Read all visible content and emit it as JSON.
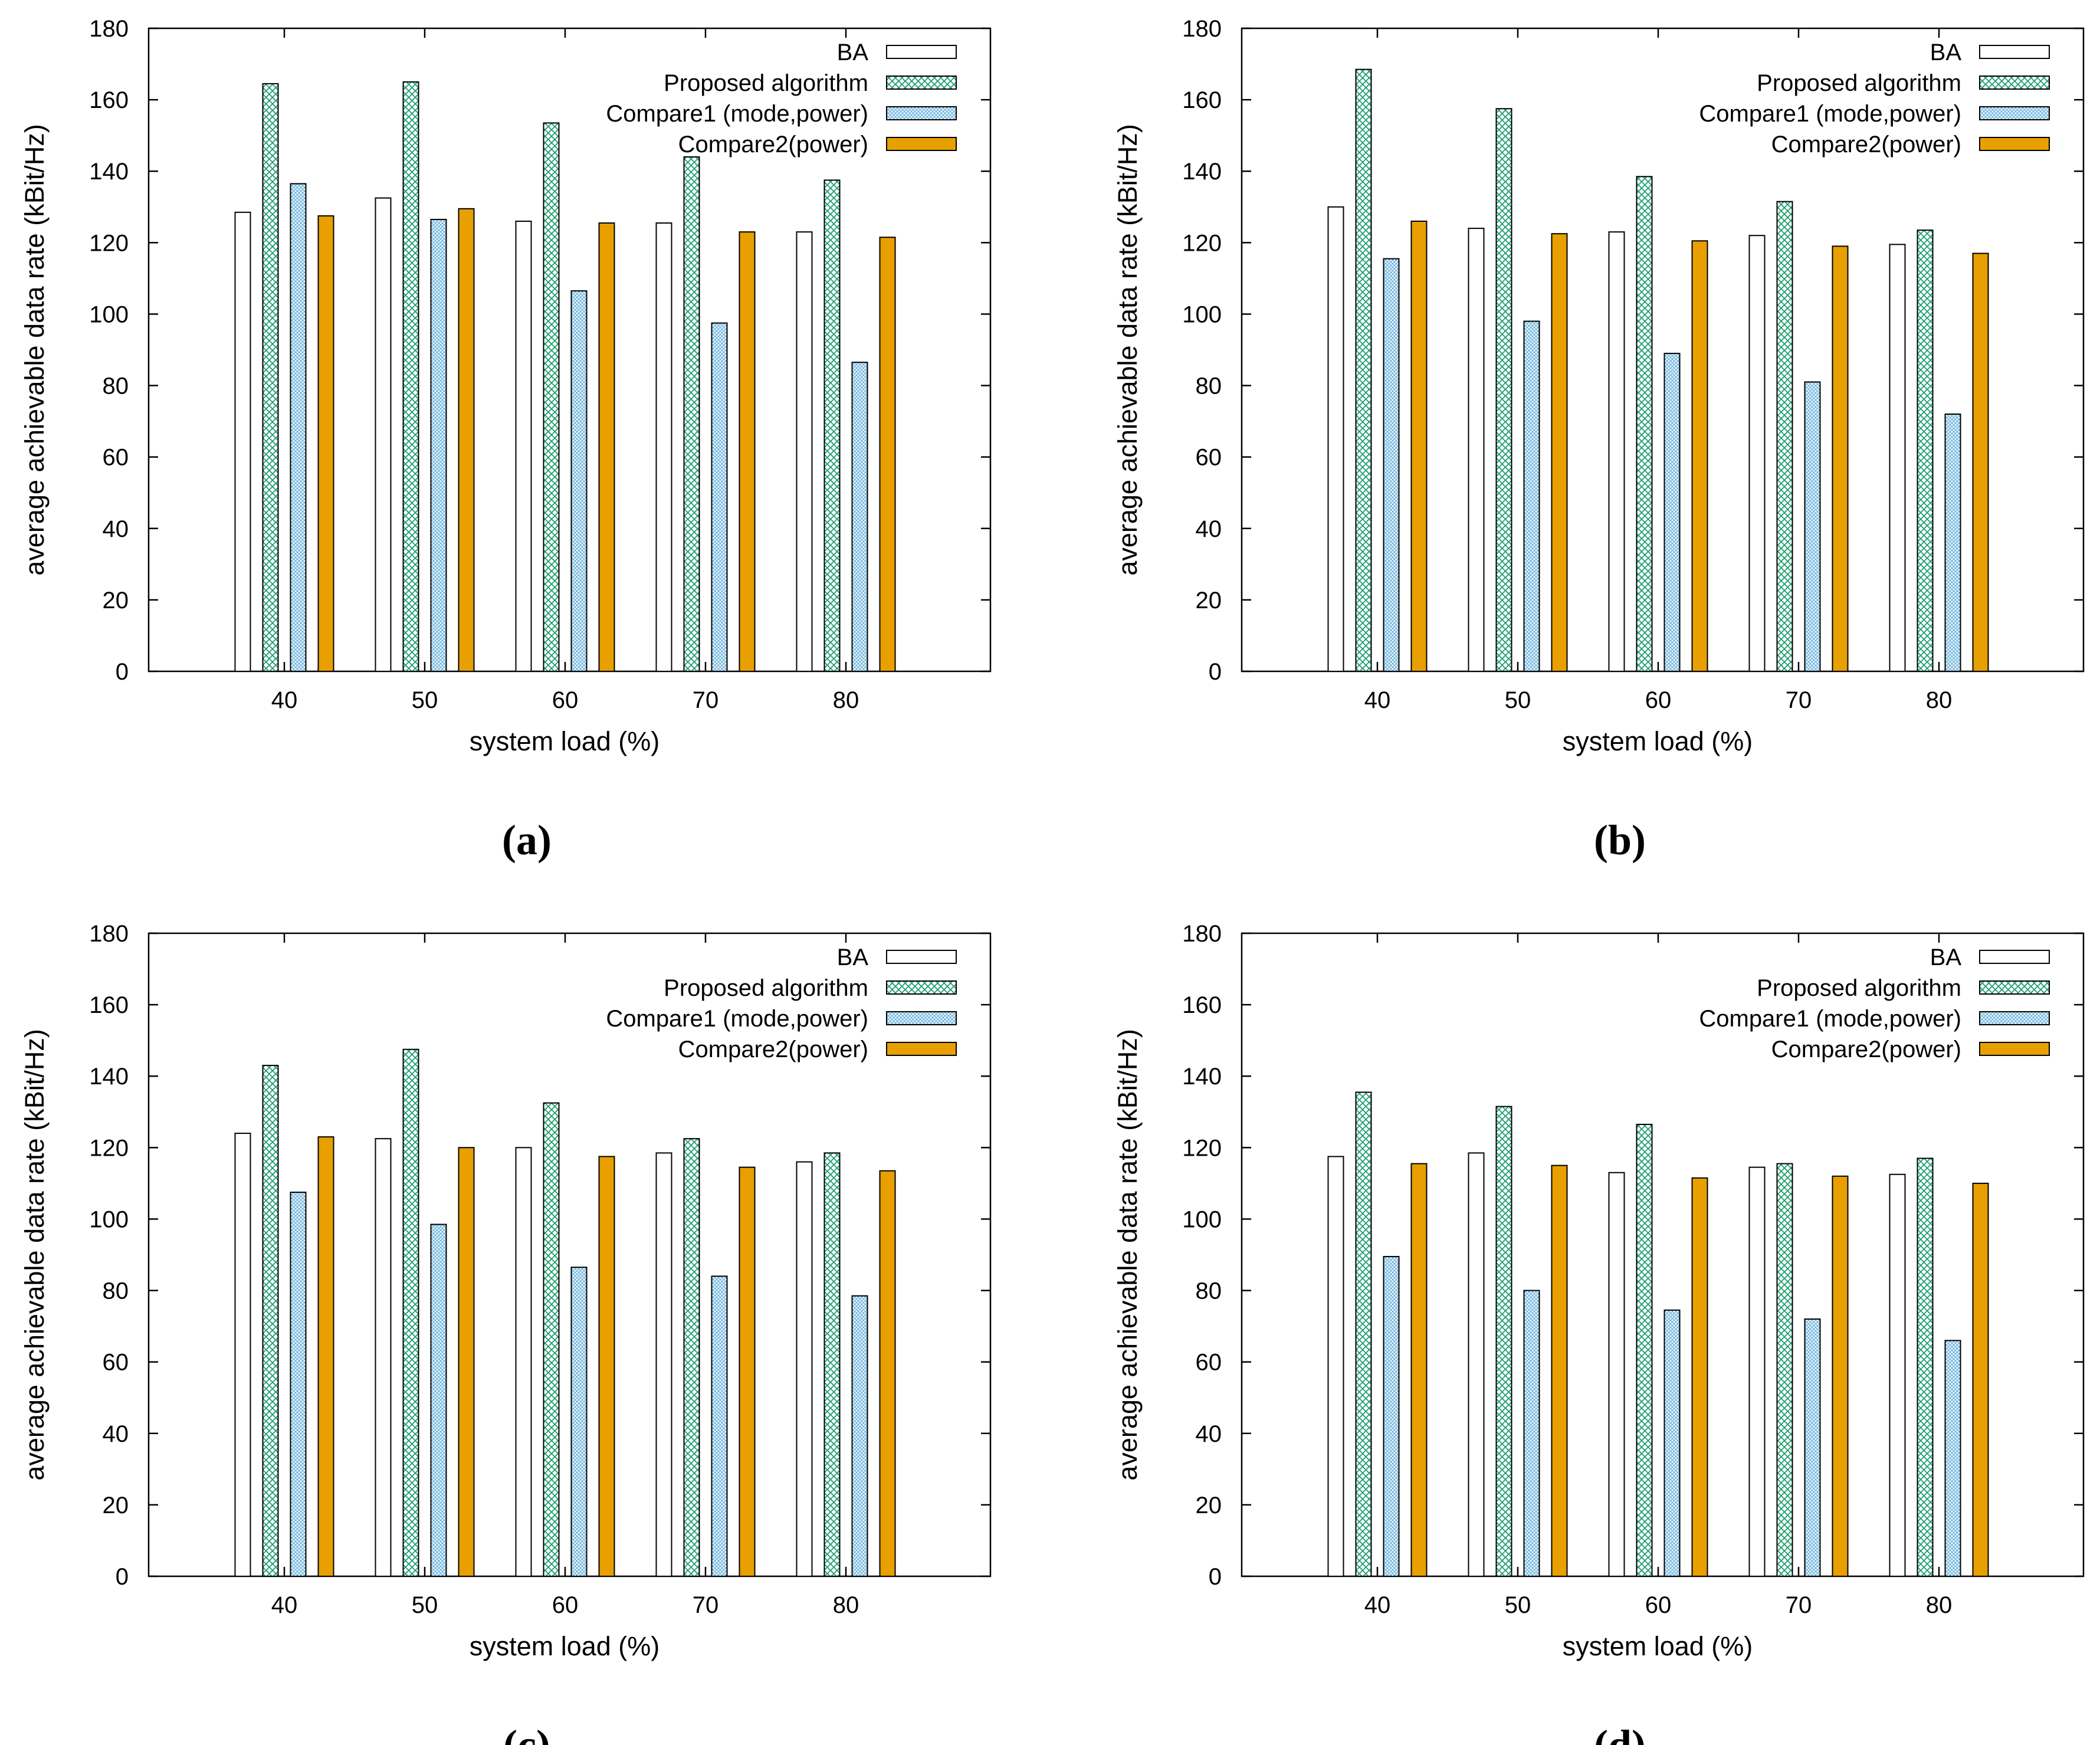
{
  "colors": {
    "ba": "#ffffff",
    "proposed_stroke": "#1e9e6e",
    "compare1_stroke": "#5aa8d8",
    "compare2": "#e8a000",
    "axis": "#000000"
  },
  "chart_data": [
    {
      "type": "bar",
      "caption": "(a)",
      "xlabel": "system load (%)",
      "ylabel": "average achievable data rate (kBit/Hz)",
      "ylim": [
        0,
        180
      ],
      "yticks": [
        0,
        20,
        40,
        60,
        80,
        100,
        120,
        140,
        160,
        180
      ],
      "legend_position": "top-right",
      "grid": false,
      "categories": [
        "40",
        "50",
        "60",
        "70",
        "80"
      ],
      "series": [
        {
          "name": "BA",
          "values": [
            128.5,
            132.5,
            126,
            125.5,
            123
          ]
        },
        {
          "name": "Proposed algorithm",
          "values": [
            164.5,
            165,
            153.5,
            144,
            137.5
          ]
        },
        {
          "name": "Compare1 (mode,power)",
          "values": [
            136.5,
            126.5,
            106.5,
            97.5,
            86.5
          ]
        },
        {
          "name": "Compare2(power)",
          "values": [
            127.5,
            129.5,
            125.5,
            123,
            121.5
          ]
        }
      ]
    },
    {
      "type": "bar",
      "caption": "(b)",
      "xlabel": "system load (%)",
      "ylabel": "average achievable data rate (kBit/Hz)",
      "ylim": [
        0,
        180
      ],
      "yticks": [
        0,
        20,
        40,
        60,
        80,
        100,
        120,
        140,
        160,
        180
      ],
      "legend_position": "top-right",
      "grid": false,
      "categories": [
        "40",
        "50",
        "60",
        "70",
        "80"
      ],
      "series": [
        {
          "name": "BA",
          "values": [
            130,
            124,
            123,
            122,
            119.5
          ]
        },
        {
          "name": "Proposed algorithm",
          "values": [
            168.5,
            157.5,
            138.5,
            131.5,
            123.5
          ]
        },
        {
          "name": "Compare1 (mode,power)",
          "values": [
            115.5,
            98,
            89,
            81,
            72
          ]
        },
        {
          "name": "Compare2(power)",
          "values": [
            126,
            122.5,
            120.5,
            119,
            117
          ]
        }
      ]
    },
    {
      "type": "bar",
      "caption": "(c)",
      "xlabel": "system load (%)",
      "ylabel": "average achievable data rate (kBit/Hz)",
      "ylim": [
        0,
        180
      ],
      "yticks": [
        0,
        20,
        40,
        60,
        80,
        100,
        120,
        140,
        160,
        180
      ],
      "legend_position": "top-right",
      "grid": false,
      "categories": [
        "40",
        "50",
        "60",
        "70",
        "80"
      ],
      "series": [
        {
          "name": "BA",
          "values": [
            124,
            122.5,
            120,
            118.5,
            116
          ]
        },
        {
          "name": "Proposed algorithm",
          "values": [
            143,
            147.5,
            132.5,
            122.5,
            118.5
          ]
        },
        {
          "name": "Compare1 (mode,power)",
          "values": [
            107.5,
            98.5,
            86.5,
            84,
            78.5
          ]
        },
        {
          "name": "Compare2(power)",
          "values": [
            123,
            120,
            117.5,
            114.5,
            113.5
          ]
        }
      ]
    },
    {
      "type": "bar",
      "caption": "(d)",
      "xlabel": "system load (%)",
      "ylabel": "average achievable data rate (kBit/Hz)",
      "ylim": [
        0,
        180
      ],
      "yticks": [
        0,
        20,
        40,
        60,
        80,
        100,
        120,
        140,
        160,
        180
      ],
      "legend_position": "top-right",
      "grid": false,
      "categories": [
        "40",
        "50",
        "60",
        "70",
        "80"
      ],
      "series": [
        {
          "name": "BA",
          "values": [
            117.5,
            118.5,
            113,
            114.5,
            112.5
          ]
        },
        {
          "name": "Proposed algorithm",
          "values": [
            135.5,
            131.5,
            126.5,
            115.5,
            117
          ]
        },
        {
          "name": "Compare1 (mode,power)",
          "values": [
            89.5,
            80,
            74.5,
            72,
            66
          ]
        },
        {
          "name": "Compare2(power)",
          "values": [
            115.5,
            115,
            111.5,
            112,
            110
          ]
        }
      ]
    }
  ]
}
